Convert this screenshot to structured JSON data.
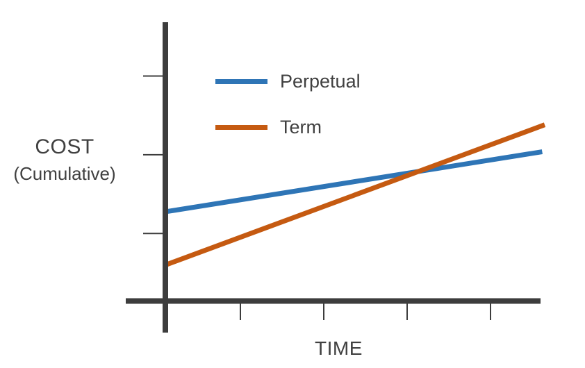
{
  "window": {
    "background": "#ffffff"
  },
  "chart_data": {
    "type": "line",
    "title": "",
    "xlabel": "TIME",
    "ylabel": "COST",
    "ylabel_sub": "(Cumulative)",
    "xlim": [
      0,
      4.5
    ],
    "ylim": [
      0,
      3.7
    ],
    "x_ticks": [
      0.9,
      1.9,
      2.9,
      3.9
    ],
    "y_ticks": [
      0.9,
      1.95,
      3.0
    ],
    "tick_labels_shown": false,
    "grid": false,
    "legend_position": "inside-top-left",
    "axis_color": "#3d3d3d",
    "text_color": "#404040",
    "series": [
      {
        "name": "Perpetual",
        "color": "#2e75b6",
        "points": [
          {
            "x": 0,
            "y": 1.19
          },
          {
            "x": 4.52,
            "y": 1.99
          }
        ]
      },
      {
        "name": "Term",
        "color": "#c55a11",
        "points": [
          {
            "x": 0,
            "y": 0.48
          },
          {
            "x": 4.55,
            "y": 2.35
          }
        ]
      }
    ]
  }
}
